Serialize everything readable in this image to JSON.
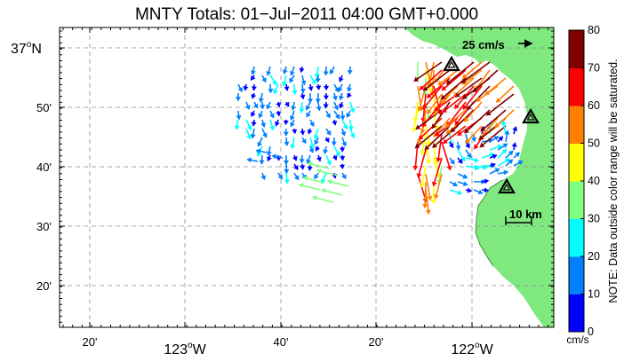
{
  "title": "MNTY Totals: 01−Jul−2011 04:00 GMT+0.000",
  "lat_labels": [
    {
      "text": "37",
      "unit": "o",
      "hemi": "N",
      "major": true
    },
    {
      "text": "50'",
      "major": false
    },
    {
      "text": "40'",
      "major": false
    },
    {
      "text": "30'",
      "major": false
    },
    {
      "text": "20'",
      "major": false
    }
  ],
  "lon_labels": [
    {
      "text": "20'",
      "major": false
    },
    {
      "text": "123",
      "unit": "o",
      "hemi": "W",
      "major": true
    },
    {
      "text": "40'",
      "major": false
    },
    {
      "text": "20'",
      "major": false
    },
    {
      "text": "122",
      "unit": "o",
      "hemi": "W",
      "major": true
    }
  ],
  "reference_vector_label": "25 cm/s",
  "scale_bar_label": "10 km",
  "colorbar": {
    "ticks": [
      "0",
      "10",
      "20",
      "30",
      "40",
      "50",
      "60",
      "70",
      "80"
    ],
    "colors": [
      "#0000ff",
      "#0080ff",
      "#00ffff",
      "#80ff80",
      "#ffff00",
      "#ff8000",
      "#ff0000",
      "#800000"
    ],
    "unit": "cm/s",
    "note": "NOTE: Data outside color range will be saturated."
  },
  "land_color": "#7fe87f",
  "radar_site_icon": "triangle-marker-icon",
  "radar_sites_count_visible": 3
}
